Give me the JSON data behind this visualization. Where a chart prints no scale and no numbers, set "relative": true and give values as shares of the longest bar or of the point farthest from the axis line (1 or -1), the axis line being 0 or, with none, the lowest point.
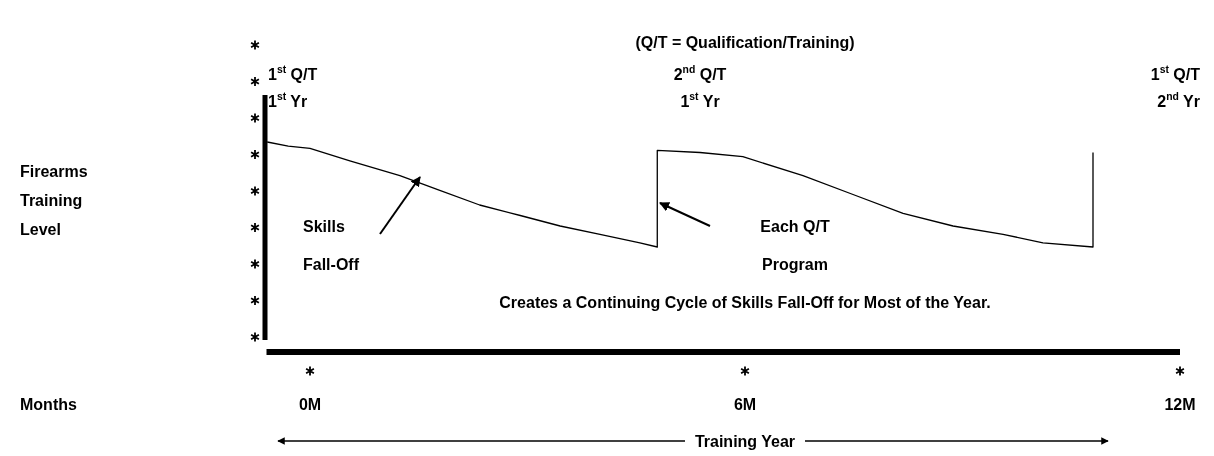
{
  "chart_data": {
    "type": "line",
    "relative": true,
    "xlim": [
      -0.6,
      12
    ],
    "xticks": [
      {
        "value": 0,
        "label": "0M"
      },
      {
        "value": 6,
        "label": "6M"
      },
      {
        "value": 12,
        "label": "12M"
      }
    ],
    "grid": false,
    "line_style": "solid",
    "series": [
      {
        "color": "#000000",
        "x": [
          -0.59,
          -0.3,
          0,
          0.55,
          1.24,
          1.79,
          2.34,
          2.9,
          3.45,
          4.0,
          4.55,
          4.79,
          4.79,
          5.38,
          5.97,
          6.8,
          7.49,
          8.18,
          8.87,
          9.56,
          10.11,
          10.8,
          10.8
        ],
        "values": [
          1.0,
          0.98,
          0.97,
          0.91,
          0.84,
          0.77,
          0.7,
          0.65,
          0.6,
          0.56,
          0.52,
          0.5,
          0.96,
          0.95,
          0.93,
          0.84,
          0.75,
          0.66,
          0.6,
          0.56,
          0.52,
          0.5,
          0.95
        ]
      }
    ],
    "annotations": [
      "(Q/T = Qualification/Training)",
      "1$^{st}$ Q/T",
      "1$^{st}$ Yr",
      "2$^{nd}$ Q/T",
      "1$^{st}$ Yr",
      "1$^{st}$ Q/T",
      "2$^{nd}$ Yr",
      "Skills",
      "Fall-Off",
      "Each Q/T",
      "Program",
      "Creates a Continuing Cycle of Skills Fall-Off for Most of the Year.",
      "Training Year",
      "Months",
      "Firearms Training Level"
    ]
  }
}
